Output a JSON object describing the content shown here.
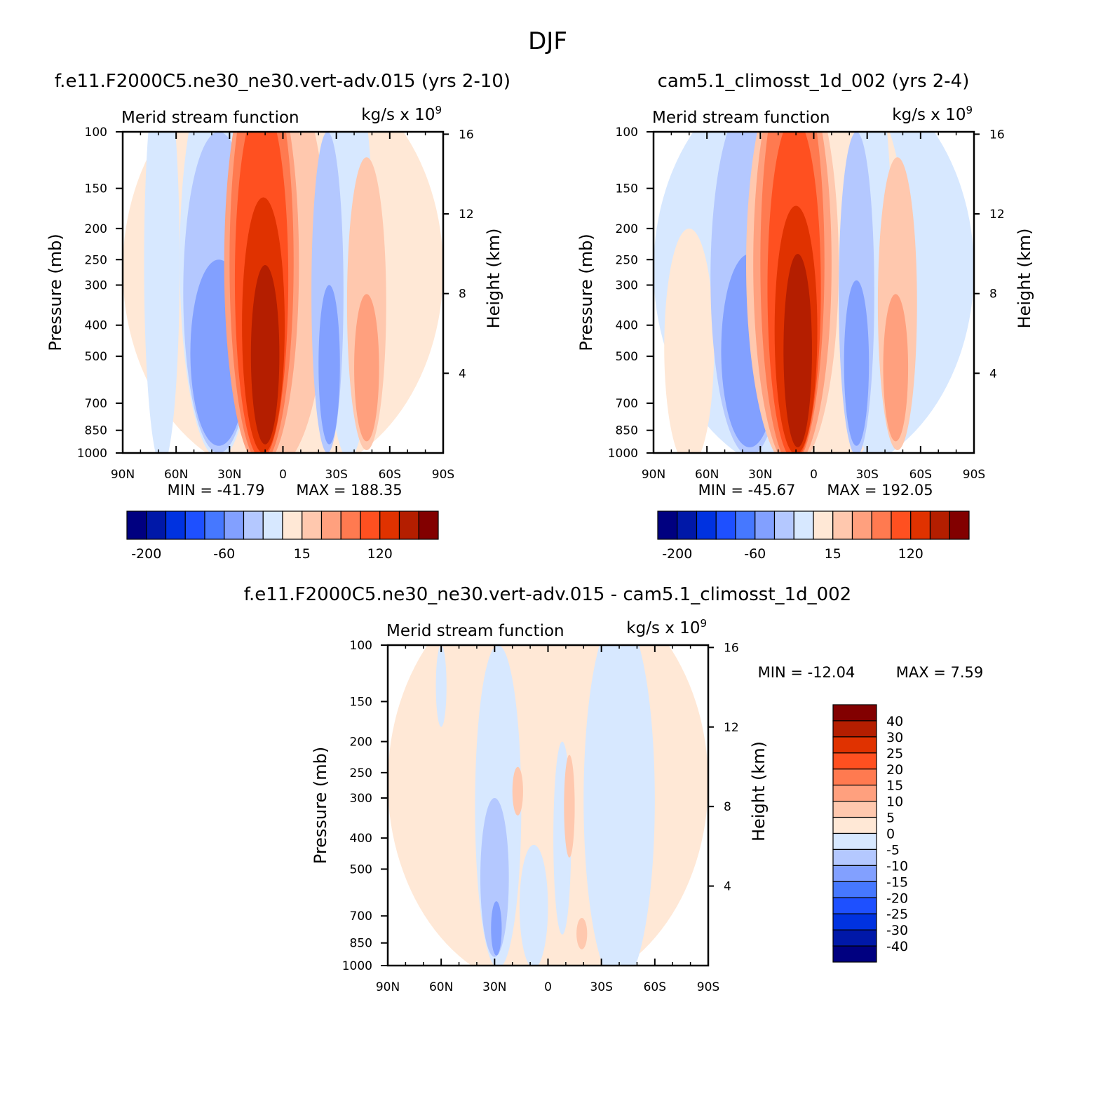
{
  "title": "DJF",
  "colors": [
    "#000080",
    "#0018A8",
    "#0032E0",
    "#1E50FF",
    "#4678FF",
    "#82A0FF",
    "#B4C8FF",
    "#D7E8FF",
    "#FFE8D6",
    "#FFC8AE",
    "#FFA07E",
    "#FF7A50",
    "#FF5020",
    "#E03200",
    "#B41E00",
    "#820000"
  ],
  "y_label": "Pressure (mb)",
  "y2_label": "Height (km)",
  "var_label": "Merid stream function",
  "units_label": "kg/s x 10",
  "units_exp": "9",
  "chart_data": [
    {
      "type": "heatmap",
      "title": "f.e11.F2000C5.ne30_ne30.vert-adv.015 (yrs 2-10)",
      "x_tick_labels": [
        "90N",
        "60N",
        "30N",
        "0",
        "30S",
        "60S",
        "90S"
      ],
      "x_tick_values": [
        90,
        60,
        30,
        0,
        -30,
        -60,
        -90
      ],
      "y_tick_labels": [
        "100",
        "150",
        "200",
        "250",
        "300",
        "400",
        "500",
        "700",
        "850",
        "1000"
      ],
      "y_tick_values": [
        100,
        150,
        200,
        250,
        300,
        400,
        500,
        700,
        850,
        1000
      ],
      "y2_tick_labels": [
        "16",
        "12",
        "8",
        "4"
      ],
      "y2_tick_values": [
        16,
        12,
        8,
        4
      ],
      "min_label": "MIN = -41.79",
      "max_label": "MAX = 188.35",
      "min": -41.79,
      "max": 188.35,
      "colorbar_labels": [
        "-200",
        "-60",
        "15",
        "120"
      ],
      "contours": [
        {
          "level": 1,
          "lat": 0,
          "p": 600,
          "dlat": 90,
          "dp": 600
        },
        {
          "level": -1,
          "lat": 68,
          "p": 500,
          "dlat": 10,
          "dp": 600
        },
        {
          "level": 2,
          "lat": 5,
          "p": 500,
          "dlat": 30,
          "dp": 620
        },
        {
          "level": -1,
          "lat": -37,
          "p": 480,
          "dlat": 14,
          "dp": 560
        },
        {
          "level": -1,
          "lat": 36,
          "p": 520,
          "dlat": 22,
          "dp": 520
        },
        {
          "level": -2,
          "lat": 36,
          "p": 550,
          "dlat": 20,
          "dp": 450
        },
        {
          "level": -3,
          "lat": 36,
          "p": 600,
          "dlat": 16,
          "dp": 350
        },
        {
          "level": 3,
          "lat": 12,
          "p": 530,
          "dlat": 21,
          "dp": 580
        },
        {
          "level": 4,
          "lat": 12,
          "p": 540,
          "dlat": 18,
          "dp": 540
        },
        {
          "level": 5,
          "lat": 12,
          "p": 560,
          "dlat": 15,
          "dp": 480
        },
        {
          "level": 6,
          "lat": 11,
          "p": 580,
          "dlat": 12,
          "dp": 420
        },
        {
          "level": 7,
          "lat": 10,
          "p": 600,
          "dlat": 8,
          "dp": 340
        },
        {
          "level": -2,
          "lat": -25,
          "p": 550,
          "dlat": 9,
          "dp": 450
        },
        {
          "level": -3,
          "lat": -26,
          "p": 620,
          "dlat": 6,
          "dp": 320
        },
        {
          "level": 2,
          "lat": -47,
          "p": 550,
          "dlat": 11,
          "dp": 430
        },
        {
          "level": 3,
          "lat": -47,
          "p": 620,
          "dlat": 7,
          "dp": 300
        }
      ]
    },
    {
      "type": "heatmap",
      "title": "cam5.1_climosst_1d_002 (yrs 2-4)",
      "x_tick_labels": [
        "90N",
        "60N",
        "30N",
        "0",
        "30S",
        "60S",
        "90S"
      ],
      "x_tick_values": [
        90,
        60,
        30,
        0,
        -30,
        -60,
        -90
      ],
      "y_tick_labels": [
        "100",
        "150",
        "200",
        "250",
        "300",
        "400",
        "500",
        "700",
        "850",
        "1000"
      ],
      "y_tick_values": [
        100,
        150,
        200,
        250,
        300,
        400,
        500,
        700,
        850,
        1000
      ],
      "y2_tick_labels": [
        "16",
        "12",
        "8",
        "4"
      ],
      "y2_tick_values": [
        16,
        12,
        8,
        4
      ],
      "min_label": "MIN = -45.67",
      "max_label": "MAX = 192.05",
      "min": -45.67,
      "max": 192.05,
      "colorbar_labels": [
        "-200",
        "-60",
        "15",
        "120"
      ],
      "contours": [
        {
          "level": -1,
          "lat": 0,
          "p": 600,
          "dlat": 90,
          "dp": 600
        },
        {
          "level": 1,
          "lat": 70,
          "p": 650,
          "dlat": 14,
          "dp": 450
        },
        {
          "level": 1,
          "lat": -10,
          "p": 500,
          "dlat": 43,
          "dp": 620
        },
        {
          "level": -1,
          "lat": -32,
          "p": 480,
          "dlat": 12,
          "dp": 560
        },
        {
          "level": -2,
          "lat": 36,
          "p": 550,
          "dlat": 22,
          "dp": 470
        },
        {
          "level": -3,
          "lat": 36,
          "p": 600,
          "dlat": 16,
          "dp": 360
        },
        {
          "level": 2,
          "lat": 12,
          "p": 520,
          "dlat": 26,
          "dp": 600
        },
        {
          "level": 3,
          "lat": 12,
          "p": 530,
          "dlat": 22,
          "dp": 580
        },
        {
          "level": 4,
          "lat": 12,
          "p": 550,
          "dlat": 18,
          "dp": 540
        },
        {
          "level": 5,
          "lat": 11,
          "p": 570,
          "dlat": 15,
          "dp": 480
        },
        {
          "level": 6,
          "lat": 10,
          "p": 590,
          "dlat": 12,
          "dp": 420
        },
        {
          "level": 7,
          "lat": 9,
          "p": 600,
          "dlat": 8,
          "dp": 360
        },
        {
          "level": -2,
          "lat": -24,
          "p": 560,
          "dlat": 10,
          "dp": 460
        },
        {
          "level": -3,
          "lat": -24,
          "p": 620,
          "dlat": 7,
          "dp": 330
        },
        {
          "level": 2,
          "lat": -47,
          "p": 550,
          "dlat": 11,
          "dp": 430
        },
        {
          "level": 3,
          "lat": -46,
          "p": 620,
          "dlat": 7,
          "dp": 300
        }
      ]
    },
    {
      "type": "heatmap",
      "title": "f.e11.F2000C5.ne30_ne30.vert-adv.015 - cam5.1_climosst_1d_002",
      "x_tick_labels": [
        "90N",
        "60N",
        "30N",
        "0",
        "30S",
        "60S",
        "90S"
      ],
      "x_tick_values": [
        90,
        60,
        30,
        0,
        -30,
        -60,
        -90
      ],
      "y_tick_labels": [
        "100",
        "150",
        "200",
        "250",
        "300",
        "400",
        "500",
        "700",
        "850",
        "1000"
      ],
      "y_tick_values": [
        100,
        150,
        200,
        250,
        300,
        400,
        500,
        700,
        850,
        1000
      ],
      "y2_tick_labels": [
        "16",
        "12",
        "8",
        "4"
      ],
      "y2_tick_values": [
        16,
        12,
        8,
        4
      ],
      "min_label": "MIN = -12.04",
      "max_label": "MAX =    7.59",
      "min": -12.04,
      "max": 7.59,
      "colorbar_labels": [
        "40",
        "30",
        "25",
        "20",
        "15",
        "10",
        "5",
        "0",
        "-5",
        "-10",
        "-15",
        "-20",
        "-25",
        "-30",
        "-40"
      ],
      "contours": [
        {
          "level": 1,
          "lat": 0,
          "p": 600,
          "dlat": 90,
          "dp": 600
        },
        {
          "level": -1,
          "lat": 60,
          "p": 140,
          "dlat": 3,
          "dp": 40
        },
        {
          "level": -1,
          "lat": 28,
          "p": 560,
          "dlat": 13,
          "dp": 460
        },
        {
          "level": -1,
          "lat": 8,
          "p": 720,
          "dlat": 8,
          "dp": 300
        },
        {
          "level": -1,
          "lat": -8,
          "p": 500,
          "dlat": 5,
          "dp": 300
        },
        {
          "level": -1,
          "lat": -40,
          "p": 620,
          "dlat": 20,
          "dp": 540
        },
        {
          "level": -2,
          "lat": 30,
          "p": 620,
          "dlat": 8,
          "dp": 320
        },
        {
          "level": -3,
          "lat": 29,
          "p": 780,
          "dlat": 3,
          "dp": 150
        },
        {
          "level": 2,
          "lat": 17,
          "p": 290,
          "dlat": 3,
          "dp": 50
        },
        {
          "level": 2,
          "lat": -12,
          "p": 340,
          "dlat": 3,
          "dp": 120
        },
        {
          "level": 2,
          "lat": -19,
          "p": 800,
          "dlat": 3,
          "dp": 90
        }
      ]
    }
  ]
}
